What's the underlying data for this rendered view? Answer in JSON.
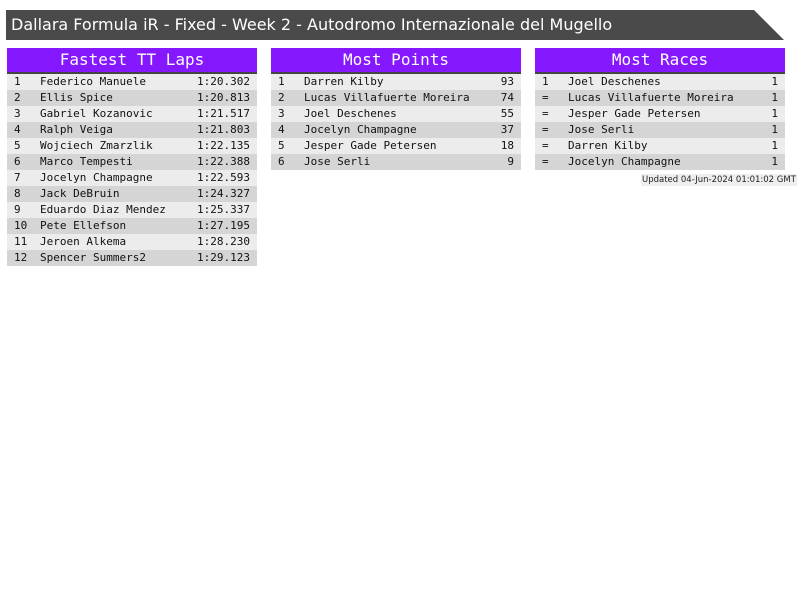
{
  "title": "Dallara Formula iR - Fixed - Week 2 - Autodromo Internazionale del Mugello",
  "panels": [
    {
      "header": "Fastest TT Laps",
      "rows": [
        [
          "1",
          "Federico Manuele",
          "1:20.302"
        ],
        [
          "2",
          "Ellis Spice",
          "1:20.813"
        ],
        [
          "3",
          "Gabriel Kozanovic",
          "1:21.517"
        ],
        [
          "4",
          "Ralph Veiga",
          "1:21.803"
        ],
        [
          "5",
          "Wojciech Zmarzlik",
          "1:22.135"
        ],
        [
          "6",
          "Marco Tempesti",
          "1:22.388"
        ],
        [
          "7",
          "Jocelyn Champagne",
          "1:22.593"
        ],
        [
          "8",
          "Jack DeBruin",
          "1:24.327"
        ],
        [
          "9",
          "Eduardo Diaz Mendez",
          "1:25.337"
        ],
        [
          "10",
          "Pete Ellefson",
          "1:27.195"
        ],
        [
          "11",
          "Jeroen Alkema",
          "1:28.230"
        ],
        [
          "12",
          "Spencer Summers2",
          "1:29.123"
        ]
      ]
    },
    {
      "header": "Most Points",
      "rows": [
        [
          "1",
          "Darren Kilby",
          "93"
        ],
        [
          "2",
          "Lucas Villafuerte Moreira",
          "74"
        ],
        [
          "3",
          "Joel Deschenes",
          "55"
        ],
        [
          "4",
          "Jocelyn Champagne",
          "37"
        ],
        [
          "5",
          "Jesper Gade Petersen",
          "18"
        ],
        [
          "6",
          "Jose Serli",
          "9"
        ]
      ]
    },
    {
      "header": "Most Races",
      "rows": [
        [
          "1",
          "Joel Deschenes",
          "1"
        ],
        [
          "=",
          "Lucas Villafuerte Moreira",
          "1"
        ],
        [
          "=",
          "Jesper Gade Petersen",
          "1"
        ],
        [
          "=",
          "Jose Serli",
          "1"
        ],
        [
          "=",
          "Darren Kilby",
          "1"
        ],
        [
          "=",
          "Jocelyn Champagne",
          "1"
        ]
      ]
    }
  ],
  "updated": "Updated 04-Jun-2024 01:01:02 GMT",
  "colors": {
    "header": "#8518ff",
    "title_bar": "#4a4a4a"
  }
}
